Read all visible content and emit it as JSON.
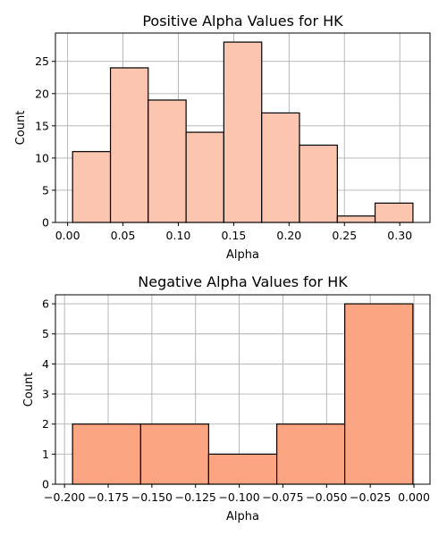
{
  "chart_data": [
    {
      "type": "bar",
      "title": "Positive Alpha Values for HK",
      "xlabel": "Alpha",
      "ylabel": "Count",
      "bin_edges": [
        0.0045,
        0.0387,
        0.0728,
        0.107,
        0.1411,
        0.1753,
        0.2094,
        0.2436,
        0.2777,
        0.3119
      ],
      "values": [
        11,
        24,
        19,
        14,
        28,
        17,
        12,
        1,
        3
      ],
      "xlim": [
        -0.011,
        0.3273
      ],
      "ylim": [
        0,
        29.4
      ],
      "xticks": [
        0.0,
        0.05,
        0.1,
        0.15,
        0.2,
        0.25,
        0.3
      ],
      "xtick_labels": [
        "0.00",
        "0.05",
        "0.10",
        "0.15",
        "0.20",
        "0.25",
        "0.30"
      ],
      "yticks": [
        0,
        5,
        10,
        15,
        20,
        25
      ],
      "ytick_labels": [
        "0",
        "5",
        "10",
        "15",
        "20",
        "25"
      ],
      "bar_color": "#fcc5b0",
      "grid": true
    },
    {
      "type": "bar",
      "title": "Negative Alpha Values for HK",
      "xlabel": "Alpha",
      "ylabel": "Count",
      "bin_edges": [
        -0.1954,
        -0.1564,
        -0.1175,
        -0.0785,
        -0.0396,
        -0.0006
      ],
      "values": [
        2,
        2,
        1,
        2,
        6
      ],
      "xlim": [
        -0.2052,
        0.0092
      ],
      "ylim": [
        0,
        6.3
      ],
      "xticks": [
        -0.2,
        -0.175,
        -0.15,
        -0.125,
        -0.1,
        -0.075,
        -0.05,
        -0.025,
        0.0
      ],
      "xtick_labels": [
        "−0.200",
        "−0.175",
        "−0.150",
        "−0.125",
        "−0.100",
        "−0.075",
        "−0.050",
        "−0.025",
        "0.000"
      ],
      "yticks": [
        0,
        1,
        2,
        3,
        4,
        5,
        6
      ],
      "ytick_labels": [
        "0",
        "1",
        "2",
        "3",
        "4",
        "5",
        "6"
      ],
      "bar_color": "#fca582",
      "grid": true
    }
  ]
}
